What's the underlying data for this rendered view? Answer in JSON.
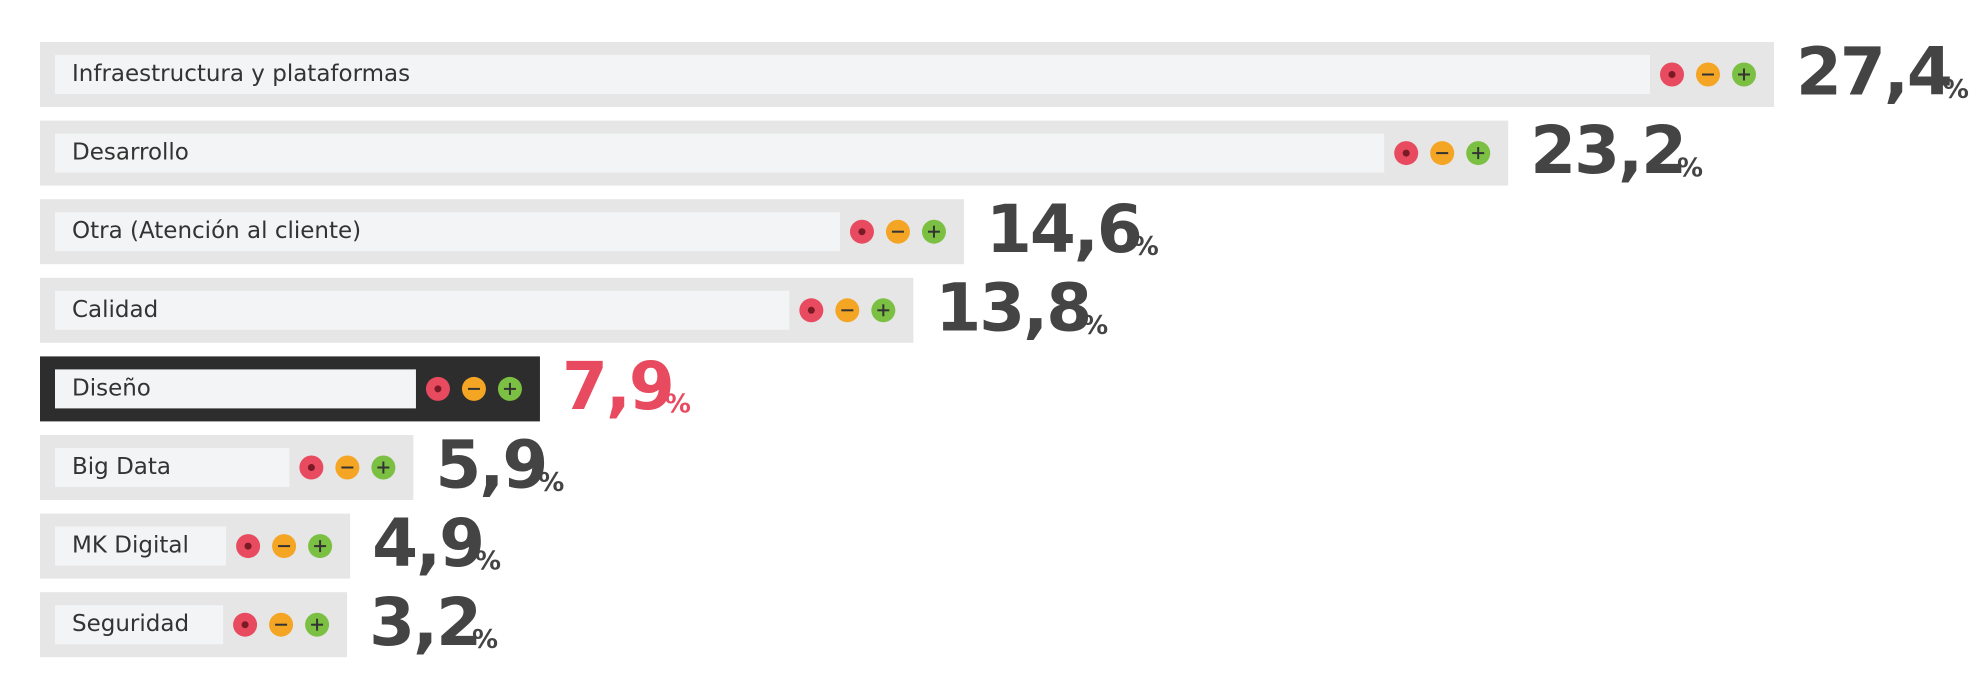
{
  "chart_data": {
    "type": "bar",
    "orientation": "horizontal",
    "categories": [
      "Infraestructura y plataformas",
      "Desarrollo",
      "Otra (Atención al cliente)",
      "Calidad",
      "Diseño",
      "Big Data",
      "MK Digital",
      "Seguridad"
    ],
    "values": [
      27.4,
      23.2,
      14.6,
      13.8,
      7.9,
      5.9,
      4.9,
      3.2
    ],
    "value_labels": [
      "27,4",
      "23,2",
      "14,6",
      "13,8",
      "7,9",
      "5,9",
      "4,9",
      "3,2"
    ],
    "value_suffix": "%",
    "bar_colors": [
      "#e6e6e6",
      "#e6e6e6",
      "#e6e6e6",
      "#e6e6e6",
      "#2d2d2d",
      "#e6e6e6",
      "#e6e6e6",
      "#e6e6e6"
    ],
    "value_label_colors": [
      "#444444",
      "#444444",
      "#444444",
      "#444444",
      "#e84a5f",
      "#444444",
      "#444444",
      "#444444"
    ]
  }
}
